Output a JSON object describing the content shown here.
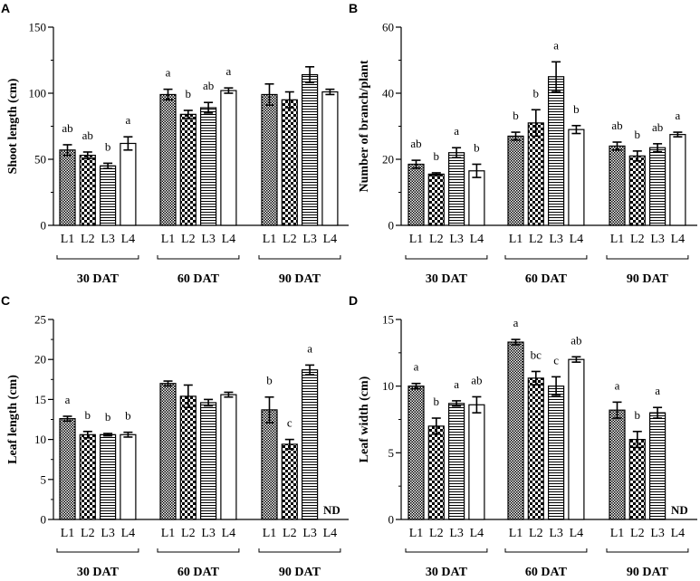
{
  "figure": {
    "type": "multi-panel bar chart"
  },
  "chart_data": [
    {
      "panel": "A",
      "type": "bar",
      "ylabel": "Shoot length (cm)",
      "ylim": [
        0,
        150
      ],
      "yticks": [
        0,
        50,
        100,
        150
      ],
      "groups": [
        {
          "label": "30 DAT",
          "bars": [
            {
              "name": "L1",
              "value": 57,
              "err": 4,
              "letter": "ab"
            },
            {
              "name": "L2",
              "value": 53,
              "err": 2.5,
              "letter": "ab"
            },
            {
              "name": "L3",
              "value": 45,
              "err": 2,
              "letter": "b"
            },
            {
              "name": "L4",
              "value": 62,
              "err": 5,
              "letter": "a"
            }
          ]
        },
        {
          "label": "60 DAT",
          "bars": [
            {
              "name": "L1",
              "value": 99,
              "err": 4,
              "letter": "a"
            },
            {
              "name": "L2",
              "value": 84,
              "err": 3,
              "letter": "b"
            },
            {
              "name": "L3",
              "value": 89,
              "err": 4,
              "letter": "ab"
            },
            {
              "name": "L4",
              "value": 102,
              "err": 2,
              "letter": "a"
            }
          ]
        },
        {
          "label": "90 DAT",
          "bars": [
            {
              "name": "L1",
              "value": 99,
              "err": 8,
              "letter": ""
            },
            {
              "name": "L2",
              "value": 95,
              "err": 6,
              "letter": ""
            },
            {
              "name": "L3",
              "value": 114,
              "err": 6,
              "letter": ""
            },
            {
              "name": "L4",
              "value": 101,
              "err": 2,
              "letter": ""
            }
          ]
        }
      ]
    },
    {
      "panel": "B",
      "type": "bar",
      "ylabel": "Number of branch/plant",
      "ylim": [
        0,
        60
      ],
      "yticks": [
        0,
        20,
        40,
        60
      ],
      "groups": [
        {
          "label": "30 DAT",
          "bars": [
            {
              "name": "L1",
              "value": 18.5,
              "err": 1.2,
              "letter": "ab"
            },
            {
              "name": "L2",
              "value": 15.5,
              "err": 0.4,
              "letter": "b"
            },
            {
              "name": "L3",
              "value": 22,
              "err": 1.5,
              "letter": "a"
            },
            {
              "name": "L4",
              "value": 16.5,
              "err": 2,
              "letter": "b"
            }
          ]
        },
        {
          "label": "60 DAT",
          "bars": [
            {
              "name": "L1",
              "value": 27,
              "err": 1.2,
              "letter": "b"
            },
            {
              "name": "L2",
              "value": 31,
              "err": 4,
              "letter": "b"
            },
            {
              "name": "L3",
              "value": 45,
              "err": 4.5,
              "letter": "a"
            },
            {
              "name": "L4",
              "value": 29,
              "err": 1.2,
              "letter": "b"
            }
          ]
        },
        {
          "label": "90 DAT",
          "bars": [
            {
              "name": "L1",
              "value": 24,
              "err": 1.2,
              "letter": "ab"
            },
            {
              "name": "L2",
              "value": 21,
              "err": 1.5,
              "letter": "b"
            },
            {
              "name": "L3",
              "value": 23.5,
              "err": 1.2,
              "letter": "ab"
            },
            {
              "name": "L4",
              "value": 27.5,
              "err": 0.7,
              "letter": "a"
            }
          ]
        }
      ]
    },
    {
      "panel": "C",
      "type": "bar",
      "ylabel": "Leaf length (cm)",
      "ylim": [
        0,
        25
      ],
      "yticks": [
        0,
        5,
        10,
        15,
        20,
        25
      ],
      "groups": [
        {
          "label": "30 DAT",
          "bars": [
            {
              "name": "L1",
              "value": 12.6,
              "err": 0.3,
              "letter": "a"
            },
            {
              "name": "L2",
              "value": 10.6,
              "err": 0.4,
              "letter": "b"
            },
            {
              "name": "L3",
              "value": 10.6,
              "err": 0.15,
              "letter": "b"
            },
            {
              "name": "L4",
              "value": 10.6,
              "err": 0.3,
              "letter": "b"
            }
          ]
        },
        {
          "label": "60 DAT",
          "bars": [
            {
              "name": "L1",
              "value": 17,
              "err": 0.3,
              "letter": ""
            },
            {
              "name": "L2",
              "value": 15.4,
              "err": 1.4,
              "letter": ""
            },
            {
              "name": "L3",
              "value": 14.6,
              "err": 0.4,
              "letter": ""
            },
            {
              "name": "L4",
              "value": 15.6,
              "err": 0.3,
              "letter": ""
            }
          ]
        },
        {
          "label": "90 DAT",
          "bars": [
            {
              "name": "L1",
              "value": 13.7,
              "err": 1.6,
              "letter": "b"
            },
            {
              "name": "L2",
              "value": 9.4,
              "err": 0.6,
              "letter": "c"
            },
            {
              "name": "L3",
              "value": 18.7,
              "err": 0.6,
              "letter": "a"
            },
            {
              "name": "L4",
              "value": null,
              "err": null,
              "letter": "",
              "note": "ND"
            }
          ]
        }
      ]
    },
    {
      "panel": "D",
      "type": "bar",
      "ylabel": "Leaf width (cm)",
      "ylim": [
        0,
        15
      ],
      "yticks": [
        0,
        5,
        10,
        15
      ],
      "groups": [
        {
          "label": "30 DAT",
          "bars": [
            {
              "name": "L1",
              "value": 10,
              "err": 0.2,
              "letter": "a"
            },
            {
              "name": "L2",
              "value": 7,
              "err": 0.6,
              "letter": "b"
            },
            {
              "name": "L3",
              "value": 8.7,
              "err": 0.2,
              "letter": "a"
            },
            {
              "name": "L4",
              "value": 8.6,
              "err": 0.6,
              "letter": "ab"
            }
          ]
        },
        {
          "label": "60 DAT",
          "bars": [
            {
              "name": "L1",
              "value": 13.3,
              "err": 0.2,
              "letter": "a"
            },
            {
              "name": "L2",
              "value": 10.6,
              "err": 0.5,
              "letter": "bc"
            },
            {
              "name": "L3",
              "value": 10,
              "err": 0.7,
              "letter": "c"
            },
            {
              "name": "L4",
              "value": 12,
              "err": 0.2,
              "letter": "ab"
            }
          ]
        },
        {
          "label": "90 DAT",
          "bars": [
            {
              "name": "L1",
              "value": 8.2,
              "err": 0.6,
              "letter": "a"
            },
            {
              "name": "L2",
              "value": 6,
              "err": 0.6,
              "letter": "b"
            },
            {
              "name": "L3",
              "value": 8,
              "err": 0.4,
              "letter": "a"
            },
            {
              "name": "L4",
              "value": null,
              "err": null,
              "letter": "",
              "note": "ND"
            }
          ]
        }
      ]
    }
  ]
}
